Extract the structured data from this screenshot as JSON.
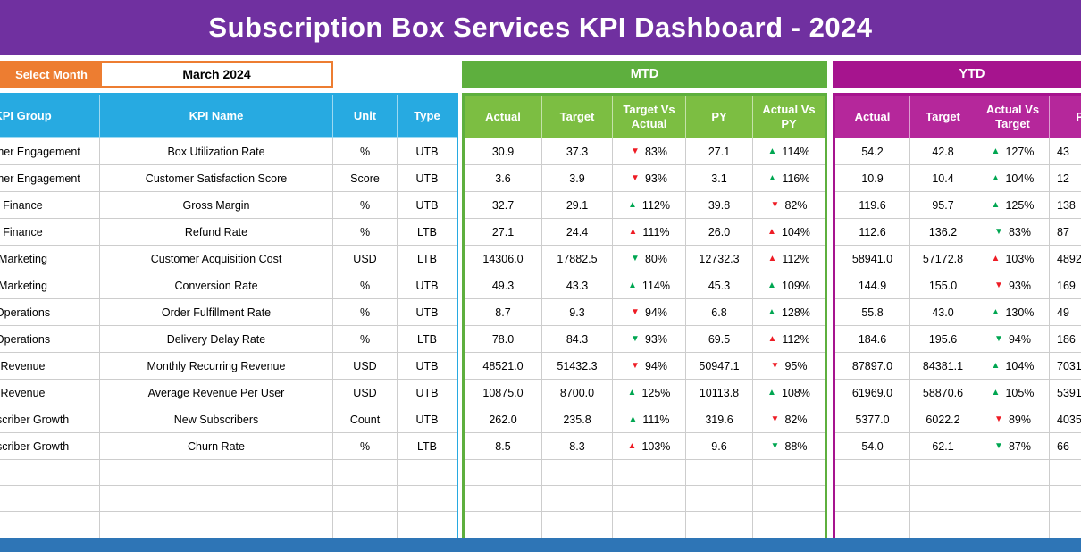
{
  "title": "Subscription Box Services KPI Dashboard - 2024",
  "controls": {
    "select_month_label": "Select Month",
    "selected_month": "March 2024"
  },
  "sections": {
    "mtd_label": "MTD",
    "ytd_label": "YTD"
  },
  "icons": {
    "up_arrow": "▲",
    "down_arrow": "▼"
  },
  "colors": {
    "banner": "#7030A0",
    "accent_orange": "#ED7D31",
    "header_blue": "#27AAE1",
    "mtd_green": "#5EAF3E",
    "mtd_green_light": "#7CBE42",
    "ytd_magenta": "#A6148E",
    "ytd_magenta_light": "#B5279B",
    "arrow_green": "#00A651",
    "arrow_red": "#EE1C25",
    "bottom_bar": "#2E75B6"
  },
  "table": {
    "left_headers": [
      "KPI Group",
      "KPI Name",
      "Unit",
      "Type"
    ],
    "mtd_headers": [
      "Actual",
      "Target",
      "Target Vs Actual",
      "PY",
      "Actual Vs PY"
    ],
    "ytd_headers": [
      "Actual",
      "Target",
      "Actual Vs Target",
      "PY"
    ],
    "empty_row_count": 3,
    "rows": [
      {
        "group": "Customer Engagement",
        "name": "Box Utilization Rate",
        "unit": "%",
        "type": "UTB",
        "mtd": {
          "actual": "30.9",
          "target": "37.3",
          "target_vs_actual": {
            "dir": "down",
            "color": "red",
            "value": "83%"
          },
          "py": "27.1",
          "actual_vs_py": {
            "dir": "up",
            "color": "green",
            "value": "114%"
          }
        },
        "ytd": {
          "actual": "54.2",
          "target": "42.8",
          "actual_vs_target": {
            "dir": "up",
            "color": "green",
            "value": "127%"
          },
          "py": "43"
        }
      },
      {
        "group": "Customer Engagement",
        "name": "Customer Satisfaction Score",
        "unit": "Score",
        "type": "UTB",
        "mtd": {
          "actual": "3.6",
          "target": "3.9",
          "target_vs_actual": {
            "dir": "down",
            "color": "red",
            "value": "93%"
          },
          "py": "3.1",
          "actual_vs_py": {
            "dir": "up",
            "color": "green",
            "value": "116%"
          }
        },
        "ytd": {
          "actual": "10.9",
          "target": "10.4",
          "actual_vs_target": {
            "dir": "up",
            "color": "green",
            "value": "104%"
          },
          "py": "12"
        }
      },
      {
        "group": "Finance",
        "name": "Gross Margin",
        "unit": "%",
        "type": "UTB",
        "mtd": {
          "actual": "32.7",
          "target": "29.1",
          "target_vs_actual": {
            "dir": "up",
            "color": "green",
            "value": "112%"
          },
          "py": "39.8",
          "actual_vs_py": {
            "dir": "down",
            "color": "red",
            "value": "82%"
          }
        },
        "ytd": {
          "actual": "119.6",
          "target": "95.7",
          "actual_vs_target": {
            "dir": "up",
            "color": "green",
            "value": "125%"
          },
          "py": "138"
        }
      },
      {
        "group": "Finance",
        "name": "Refund Rate",
        "unit": "%",
        "type": "LTB",
        "mtd": {
          "actual": "27.1",
          "target": "24.4",
          "target_vs_actual": {
            "dir": "up",
            "color": "red",
            "value": "111%"
          },
          "py": "26.0",
          "actual_vs_py": {
            "dir": "up",
            "color": "red",
            "value": "104%"
          }
        },
        "ytd": {
          "actual": "112.6",
          "target": "136.2",
          "actual_vs_target": {
            "dir": "down",
            "color": "green",
            "value": "83%"
          },
          "py": "87"
        }
      },
      {
        "group": "Marketing",
        "name": "Customer Acquisition Cost",
        "unit": "USD",
        "type": "LTB",
        "mtd": {
          "actual": "14306.0",
          "target": "17882.5",
          "target_vs_actual": {
            "dir": "down",
            "color": "green",
            "value": "80%"
          },
          "py": "12732.3",
          "actual_vs_py": {
            "dir": "up",
            "color": "red",
            "value": "112%"
          }
        },
        "ytd": {
          "actual": "58941.0",
          "target": "57172.8",
          "actual_vs_target": {
            "dir": "up",
            "color": "red",
            "value": "103%"
          },
          "py": "4892"
        }
      },
      {
        "group": "Marketing",
        "name": "Conversion Rate",
        "unit": "%",
        "type": "UTB",
        "mtd": {
          "actual": "49.3",
          "target": "43.3",
          "target_vs_actual": {
            "dir": "up",
            "color": "green",
            "value": "114%"
          },
          "py": "45.3",
          "actual_vs_py": {
            "dir": "up",
            "color": "green",
            "value": "109%"
          }
        },
        "ytd": {
          "actual": "144.9",
          "target": "155.0",
          "actual_vs_target": {
            "dir": "down",
            "color": "red",
            "value": "93%"
          },
          "py": "169"
        }
      },
      {
        "group": "Operations",
        "name": "Order Fulfillment Rate",
        "unit": "%",
        "type": "UTB",
        "mtd": {
          "actual": "8.7",
          "target": "9.3",
          "target_vs_actual": {
            "dir": "down",
            "color": "red",
            "value": "94%"
          },
          "py": "6.8",
          "actual_vs_py": {
            "dir": "up",
            "color": "green",
            "value": "128%"
          }
        },
        "ytd": {
          "actual": "55.8",
          "target": "43.0",
          "actual_vs_target": {
            "dir": "up",
            "color": "green",
            "value": "130%"
          },
          "py": "49"
        }
      },
      {
        "group": "Operations",
        "name": "Delivery Delay Rate",
        "unit": "%",
        "type": "LTB",
        "mtd": {
          "actual": "78.0",
          "target": "84.3",
          "target_vs_actual": {
            "dir": "down",
            "color": "green",
            "value": "93%"
          },
          "py": "69.5",
          "actual_vs_py": {
            "dir": "up",
            "color": "red",
            "value": "112%"
          }
        },
        "ytd": {
          "actual": "184.6",
          "target": "195.6",
          "actual_vs_target": {
            "dir": "down",
            "color": "green",
            "value": "94%"
          },
          "py": "186"
        }
      },
      {
        "group": "Revenue",
        "name": "Monthly Recurring Revenue",
        "unit": "USD",
        "type": "UTB",
        "mtd": {
          "actual": "48521.0",
          "target": "51432.3",
          "target_vs_actual": {
            "dir": "down",
            "color": "red",
            "value": "94%"
          },
          "py": "50947.1",
          "actual_vs_py": {
            "dir": "down",
            "color": "red",
            "value": "95%"
          }
        },
        "ytd": {
          "actual": "87897.0",
          "target": "84381.1",
          "actual_vs_target": {
            "dir": "up",
            "color": "green",
            "value": "104%"
          },
          "py": "7031"
        }
      },
      {
        "group": "Revenue",
        "name": "Average Revenue Per User",
        "unit": "USD",
        "type": "UTB",
        "mtd": {
          "actual": "10875.0",
          "target": "8700.0",
          "target_vs_actual": {
            "dir": "up",
            "color": "green",
            "value": "125%"
          },
          "py": "10113.8",
          "actual_vs_py": {
            "dir": "up",
            "color": "green",
            "value": "108%"
          }
        },
        "ytd": {
          "actual": "61969.0",
          "target": "58870.6",
          "actual_vs_target": {
            "dir": "up",
            "color": "green",
            "value": "105%"
          },
          "py": "5391"
        }
      },
      {
        "group": "Subscriber Growth",
        "name": "New Subscribers",
        "unit": "Count",
        "type": "UTB",
        "mtd": {
          "actual": "262.0",
          "target": "235.8",
          "target_vs_actual": {
            "dir": "up",
            "color": "green",
            "value": "111%"
          },
          "py": "319.6",
          "actual_vs_py": {
            "dir": "down",
            "color": "red",
            "value": "82%"
          }
        },
        "ytd": {
          "actual": "5377.0",
          "target": "6022.2",
          "actual_vs_target": {
            "dir": "down",
            "color": "red",
            "value": "89%"
          },
          "py": "4035"
        }
      },
      {
        "group": "Subscriber Growth",
        "name": "Churn Rate",
        "unit": "%",
        "type": "LTB",
        "mtd": {
          "actual": "8.5",
          "target": "8.3",
          "target_vs_actual": {
            "dir": "up",
            "color": "red",
            "value": "103%"
          },
          "py": "9.6",
          "actual_vs_py": {
            "dir": "down",
            "color": "green",
            "value": "88%"
          }
        },
        "ytd": {
          "actual": "54.0",
          "target": "62.1",
          "actual_vs_target": {
            "dir": "down",
            "color": "green",
            "value": "87%"
          },
          "py": "66"
        }
      }
    ]
  }
}
